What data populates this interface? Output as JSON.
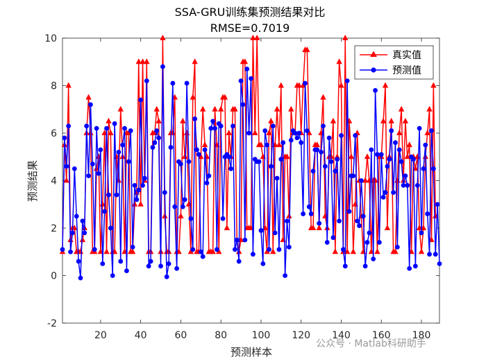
{
  "chart_data": {
    "type": "line",
    "title": "SSA-GRU训练集预测结果对比",
    "subtitle": "RMSE=0.7019",
    "xlabel": "预测样本",
    "ylabel": "预测结果",
    "xlim": [
      1,
      189
    ],
    "ylim": [
      -2,
      10
    ],
    "xticks": [
      20,
      40,
      60,
      80,
      100,
      120,
      140,
      160,
      180
    ],
    "yticks": [
      -2,
      0,
      2,
      4,
      6,
      8,
      10
    ],
    "legend_position": "top-right",
    "series": [
      {
        "name": "真实值",
        "color": "#ff0000",
        "marker": "triangle",
        "values": [
          1,
          5.5,
          4,
          8,
          1.5,
          2,
          2,
          1,
          1,
          1,
          1.5,
          2,
          6,
          7.5,
          6,
          1,
          1,
          4.5,
          5,
          1,
          3,
          6,
          1,
          6.5,
          6,
          1,
          1,
          5,
          4,
          7,
          5,
          1,
          6,
          6,
          1,
          1,
          3,
          3.5,
          9,
          3,
          9,
          4,
          9,
          1,
          1,
          6,
          6,
          7,
          6.5,
          1,
          10,
          2.5,
          1,
          1,
          6,
          6,
          7.5,
          1,
          1,
          2.5,
          6.5,
          5,
          6,
          3,
          1,
          7.5,
          9,
          1,
          1,
          5,
          7,
          5.5,
          5,
          1,
          1,
          1,
          7,
          5.5,
          1,
          7,
          7.5,
          7.5,
          2,
          6,
          5,
          7,
          7,
          1.5,
          1,
          1.5,
          9,
          9,
          2,
          2,
          2,
          10,
          6,
          10,
          5.5,
          5.5,
          5,
          2,
          1,
          6,
          6.5,
          1,
          5.5,
          7,
          5.5,
          8,
          1.5,
          5,
          5,
          2.5,
          7,
          6,
          6,
          8,
          8,
          6,
          8,
          9.5,
          9.5,
          6,
          2,
          2,
          5.5,
          5.5,
          2,
          6,
          7.5,
          2.5,
          2,
          5,
          5,
          6.5,
          1,
          5,
          9,
          8,
          1,
          10,
          1,
          6.5,
          5,
          1,
          3,
          6,
          4,
          2.5,
          1,
          4,
          5,
          4,
          1,
          4,
          4,
          1,
          5,
          5,
          6.5,
          8,
          2,
          5,
          6.5,
          1,
          1,
          4,
          6,
          7,
          4,
          6.5,
          5,
          5.5,
          1,
          5,
          4.5,
          5,
          2,
          1,
          2,
          5,
          6,
          7,
          1.5,
          8,
          2.5
        ]
      },
      {
        "name": "预测值",
        "color": "#0000ff",
        "marker": "circle",
        "values": [
          1.1,
          5.8,
          4.6,
          6.3,
          1,
          1.8,
          4.5,
          2.5,
          0.6,
          -0.1,
          2.3,
          1.8,
          6.3,
          4.2,
          7.2,
          4.7,
          1.1,
          6.2,
          4.3,
          5.3,
          0.5,
          2.7,
          6.2,
          3.4,
          2,
          0,
          6.4,
          3.4,
          5.2,
          0.6,
          5.5,
          6.2,
          0.2,
          4.8,
          6.1,
          1.2,
          3.8,
          3.2,
          3.6,
          7.4,
          3.8,
          4.1,
          8.2,
          0.4,
          0.6,
          5.4,
          5.6,
          6.1,
          5.8,
          0.4,
          8.8,
          3.5,
          -0.05,
          0.5,
          5.4,
          8.1,
          2.9,
          0.3,
          4.8,
          4.7,
          2.9,
          3.2,
          8.1,
          4.8,
          2.4,
          1.1,
          6.6,
          5.3,
          5.1,
          1,
          0.8,
          5.3,
          3.9,
          4.2,
          6.2,
          6.5,
          6.2,
          1.1,
          6.4,
          6.3,
          2.4,
          5,
          5.1,
          5,
          4.5,
          6.3,
          1.1,
          1.5,
          0.6,
          8.2,
          7.2,
          1.5,
          8.7,
          6,
          8.3,
          0.9,
          4.9,
          4.8,
          4.8,
          1.9,
          0.5,
          6.1,
          5.5,
          1.1,
          4.6,
          6.3,
          1.8,
          4.1,
          1.1,
          4.9,
          5.6,
          0,
          2.3,
          1.2,
          5.7,
          6.1,
          6,
          5.8,
          6,
          5.6,
          2.6,
          8.1,
          6.1,
          2.9,
          2.6,
          4.4,
          5.3,
          5.3,
          2.2,
          5.2,
          6.3,
          4.6,
          1.4,
          5.8,
          4.8,
          1.6,
          4.4,
          4.9,
          2.3,
          5.9,
          1.1,
          0.4,
          8.2,
          2.7,
          4.2,
          4.2,
          5.9,
          2.3,
          2.1,
          4,
          2.5,
          0.4,
          1.4,
          1.8,
          5.3,
          0.7,
          7.8,
          5.1,
          1.4,
          5.1,
          3.3,
          3.5,
          4.6,
          4.9,
          6.1,
          3.5,
          5.6,
          1.2,
          5.3,
          4.8,
          3.8,
          4.2,
          3.8,
          0.3,
          5,
          4.9,
          0.4,
          3.8,
          6.2,
          1.8,
          4.5,
          5.5,
          2.6,
          0.9,
          6.1,
          4.5,
          0.9,
          3,
          0.5
        ]
      }
    ]
  },
  "watermark": "公众号 · Matlab科研助手"
}
